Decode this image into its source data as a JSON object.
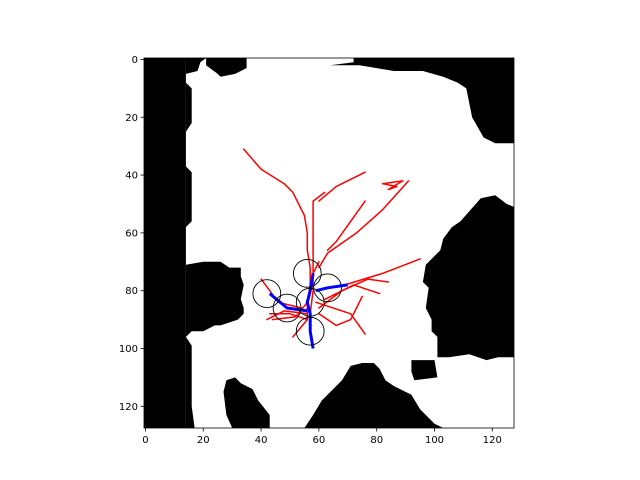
{
  "chart_data": {
    "type": "map",
    "title": "",
    "xlabel": "",
    "ylabel": "",
    "xlim": [
      -0.5,
      127.5
    ],
    "ylim": [
      127.5,
      -0.5
    ],
    "y_axis_inverted": true,
    "grid": false,
    "legend": "none",
    "x_ticks": [
      0,
      20,
      40,
      60,
      80,
      100,
      120
    ],
    "y_ticks": [
      0,
      20,
      40,
      60,
      80,
      100,
      120
    ],
    "colors": {
      "obstacle": "#000000",
      "free": "#ffffff",
      "tree_edges": "#ff0000",
      "path": "#0000ff",
      "circle": "#000000"
    },
    "obstacles": [
      [
        [
          -0.5,
          -0.5
        ],
        [
          14,
          -0.5
        ],
        [
          14,
          127.5
        ],
        [
          -0.5,
          127.5
        ]
      ],
      [
        [
          14,
          -0.5
        ],
        [
          21,
          -0.5
        ],
        [
          21,
          2
        ],
        [
          25,
          5
        ],
        [
          26,
          6
        ],
        [
          31,
          5
        ],
        [
          35,
          3
        ],
        [
          35,
          -0.5
        ],
        [
          14,
          -0.5
        ]
      ],
      [
        [
          14,
          -0.5
        ],
        [
          21,
          -0.5
        ],
        [
          19,
          1
        ],
        [
          18,
          4
        ],
        [
          14,
          5
        ]
      ],
      [
        [
          14,
          8
        ],
        [
          16,
          10
        ],
        [
          16,
          22
        ],
        [
          14,
          25
        ]
      ],
      [
        [
          14,
          37
        ],
        [
          16,
          39
        ],
        [
          16,
          56
        ],
        [
          14,
          58
        ]
      ],
      [
        [
          14,
          71
        ],
        [
          20,
          70
        ],
        [
          26,
          70
        ],
        [
          29,
          72
        ],
        [
          33,
          72
        ],
        [
          33,
          75
        ],
        [
          34,
          78
        ],
        [
          33,
          83
        ],
        [
          34,
          86
        ],
        [
          34,
          88
        ],
        [
          32,
          90
        ],
        [
          26,
          92
        ],
        [
          24,
          92
        ],
        [
          20,
          94
        ],
        [
          16,
          94
        ],
        [
          14,
          96
        ]
      ],
      [
        [
          14,
          96
        ],
        [
          16,
          99
        ],
        [
          16,
          120
        ],
        [
          17,
          127.5
        ],
        [
          14,
          127.5
        ]
      ],
      [
        [
          28,
          111
        ],
        [
          31,
          110
        ],
        [
          33,
          112
        ],
        [
          37,
          114
        ],
        [
          39,
          118
        ],
        [
          43,
          123
        ],
        [
          43,
          127.5
        ],
        [
          30,
          127.5
        ],
        [
          28,
          123
        ],
        [
          27,
          115
        ]
      ],
      [
        [
          55,
          127.5
        ],
        [
          58,
          123
        ],
        [
          61,
          118
        ],
        [
          64,
          115
        ],
        [
          68,
          111
        ],
        [
          71,
          106
        ],
        [
          75,
          105
        ],
        [
          79,
          105
        ],
        [
          81,
          107
        ],
        [
          83,
          111
        ],
        [
          86,
          113
        ],
        [
          92,
          116
        ],
        [
          95,
          121
        ],
        [
          98,
          124
        ],
        [
          100,
          126
        ],
        [
          103,
          127.5
        ]
      ],
      [
        [
          72,
          107
        ],
        [
          74,
          110
        ],
        [
          71,
          113
        ],
        [
          70,
          110
        ]
      ],
      [
        [
          92,
          104
        ],
        [
          100,
          104
        ],
        [
          101,
          110
        ],
        [
          93,
          111
        ],
        [
          92,
          108
        ]
      ],
      [
        [
          64,
          2
        ],
        [
          72,
          1
        ],
        [
          72,
          -0.5
        ],
        [
          127.5,
          -0.5
        ],
        [
          127.5,
          29
        ],
        [
          121,
          29
        ],
        [
          117,
          27
        ],
        [
          113,
          20
        ],
        [
          112,
          15
        ],
        [
          111,
          10
        ],
        [
          108,
          8
        ],
        [
          103,
          6
        ],
        [
          96,
          4
        ],
        [
          86,
          4
        ],
        [
          74,
          2
        ]
      ],
      [
        [
          109,
          56
        ],
        [
          116,
          48
        ],
        [
          121,
          47
        ],
        [
          125,
          50
        ],
        [
          127.5,
          51
        ],
        [
          127.5,
          103
        ],
        [
          122,
          103
        ],
        [
          118,
          104
        ],
        [
          112,
          102
        ],
        [
          105,
          103
        ],
        [
          101,
          103
        ],
        [
          101,
          96
        ],
        [
          99,
          94
        ],
        [
          99,
          90
        ],
        [
          97,
          86
        ],
        [
          98,
          79
        ],
        [
          96,
          77
        ],
        [
          97,
          71
        ],
        [
          102,
          66
        ],
        [
          103,
          62
        ],
        [
          106,
          58
        ]
      ]
    ],
    "tree_edges": [
      [
        [
          34,
          31
        ],
        [
          40,
          38
        ],
        [
          48,
          43
        ],
        [
          51,
          46
        ],
        [
          53,
          50
        ],
        [
          55,
          54
        ],
        [
          56,
          60
        ],
        [
          56,
          66
        ],
        [
          57,
          72
        ],
        [
          57,
          78
        ],
        [
          56,
          84
        ],
        [
          56,
          90
        ]
      ],
      [
        [
          57,
          88
        ],
        [
          58,
          80
        ],
        [
          58,
          70
        ],
        [
          58,
          62
        ],
        [
          58,
          54
        ],
        [
          58,
          49
        ],
        [
          62,
          46
        ]
      ],
      [
        [
          60,
          49
        ],
        [
          66,
          44
        ],
        [
          76,
          39
        ]
      ],
      [
        [
          60,
          72
        ],
        [
          63,
          67
        ],
        [
          73,
          60
        ],
        [
          82,
          52
        ],
        [
          91,
          42
        ]
      ],
      [
        [
          63,
          66
        ],
        [
          66,
          63
        ],
        [
          71,
          56
        ],
        [
          76,
          49
        ]
      ],
      [
        [
          82,
          43
        ],
        [
          89,
          42
        ],
        [
          84,
          45
        ],
        [
          87,
          44
        ],
        [
          82,
          43
        ]
      ],
      [
        [
          59,
          80
        ],
        [
          69,
          78
        ],
        [
          82,
          74
        ],
        [
          95,
          69
        ]
      ],
      [
        [
          60,
          86
        ],
        [
          68,
          80
        ],
        [
          77,
          76
        ],
        [
          84,
          77
        ]
      ],
      [
        [
          62,
          83
        ],
        [
          72,
          78
        ],
        [
          81,
          81
        ]
      ],
      [
        [
          59,
          84
        ],
        [
          71,
          88
        ],
        [
          76,
          95
        ]
      ],
      [
        [
          60,
          88
        ],
        [
          66,
          92
        ],
        [
          71,
          90
        ],
        [
          75,
          82
        ]
      ],
      [
        [
          56,
          90
        ],
        [
          50,
          88
        ],
        [
          43,
          88
        ]
      ],
      [
        [
          56,
          88
        ],
        [
          48,
          87
        ],
        [
          42,
          90
        ]
      ],
      [
        [
          54,
          86
        ],
        [
          46,
          84
        ],
        [
          40,
          76
        ]
      ],
      [
        [
          56,
          84
        ],
        [
          52,
          89
        ],
        [
          44,
          90
        ]
      ],
      [
        [
          56,
          90
        ],
        [
          51,
          96
        ]
      ],
      [
        [
          58,
          74
        ],
        [
          60,
          70
        ]
      ]
    ],
    "path": [
      [
        [
          58,
          100
        ],
        [
          57,
          94
        ],
        [
          57,
          88
        ],
        [
          56,
          84
        ],
        [
          57,
          80
        ],
        [
          58,
          74
        ]
      ],
      [
        [
          43,
          81
        ],
        [
          49,
          86
        ],
        [
          56,
          87
        ]
      ],
      [
        [
          59,
          80
        ],
        [
          63,
          79
        ],
        [
          70,
          78
        ]
      ]
    ],
    "circles": [
      {
        "x": 56,
        "y": 74,
        "r": 4.8
      },
      {
        "x": 63,
        "y": 79,
        "r": 4.8
      },
      {
        "x": 42,
        "y": 81,
        "r": 4.8
      },
      {
        "x": 57,
        "y": 84,
        "r": 4.8
      },
      {
        "x": 49,
        "y": 86,
        "r": 4.8
      },
      {
        "x": 57,
        "y": 94,
        "r": 4.8
      }
    ]
  }
}
